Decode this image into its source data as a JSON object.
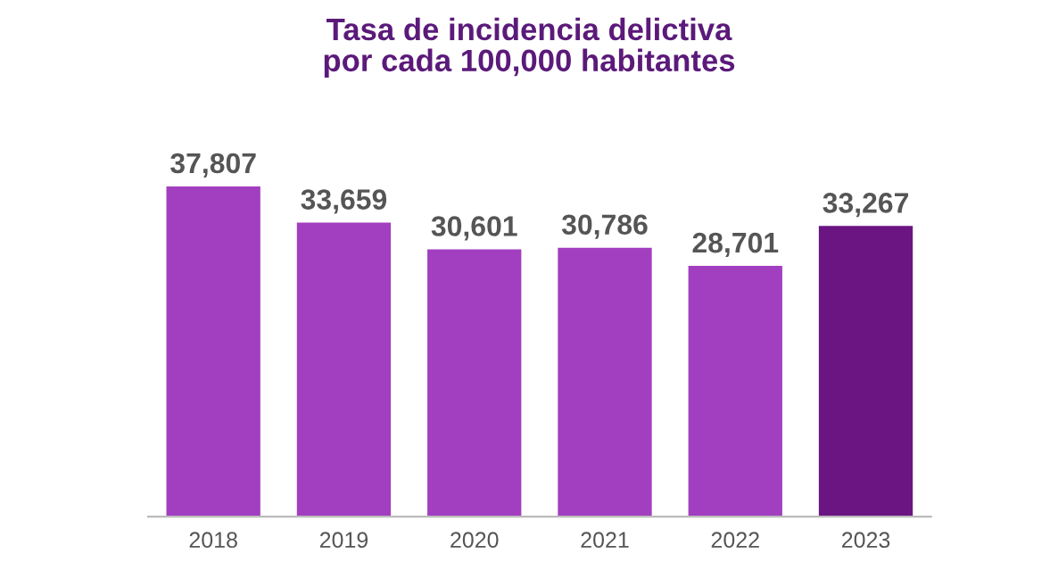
{
  "chart_data": {
    "type": "bar",
    "title": "Tasa de incidencia delictiva\npor cada 100,000 habitantes",
    "categories": [
      "2018",
      "2019",
      "2020",
      "2021",
      "2022",
      "2023"
    ],
    "values": [
      37807,
      33659,
      30601,
      30786,
      28701,
      33267
    ],
    "colors": [
      "#a23fc0",
      "#a23fc0",
      "#a23fc0",
      "#a23fc0",
      "#a23fc0",
      "#6b1583"
    ],
    "value_labels": [
      "37,807",
      "33,659",
      "30,601",
      "30,786",
      "28,701",
      "33,267"
    ]
  }
}
